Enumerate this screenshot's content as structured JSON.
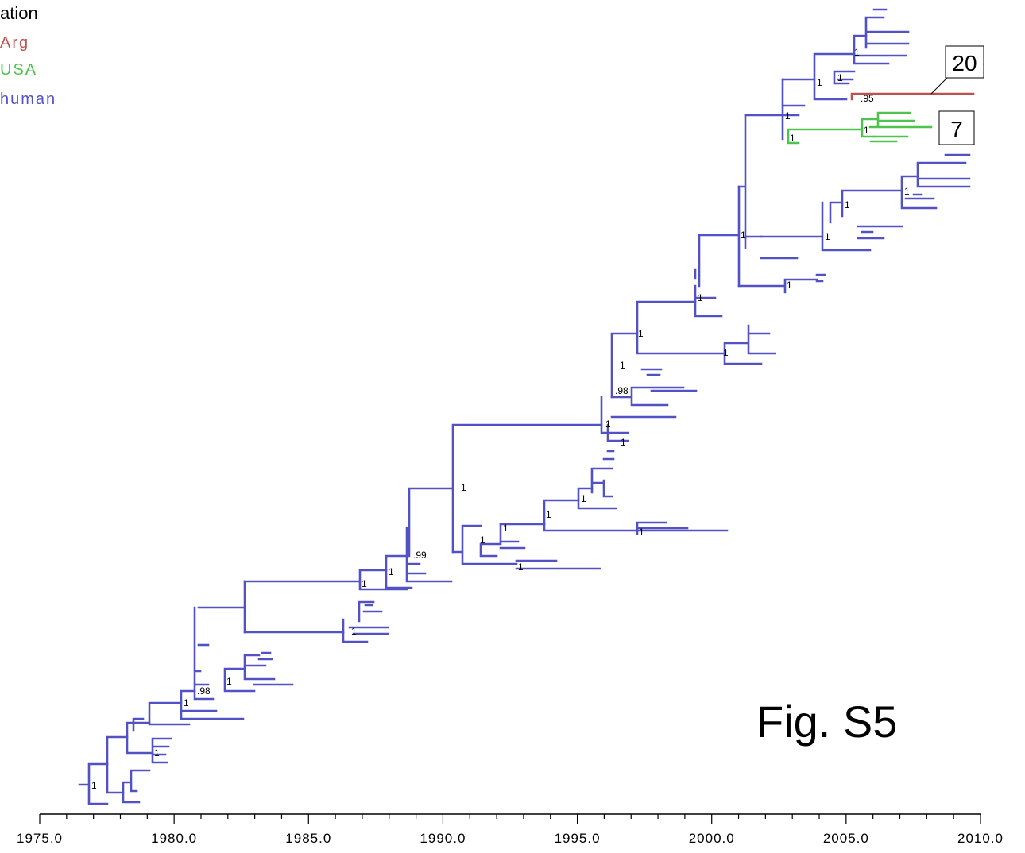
{
  "legend": {
    "title": "ation",
    "entries": [
      {
        "label": "Arg",
        "color": "#c0504d"
      },
      {
        "label": "USA",
        "color": "#4ec44e"
      },
      {
        "label": "human",
        "color": "#5252c4"
      }
    ]
  },
  "branch_colors": {
    "human": "#5252c4",
    "arg": "#c0504d",
    "usa": "#4ec44e"
  },
  "axis": {
    "min": 1975,
    "max": 2010,
    "ticks": [
      "1975.0",
      "1980.0",
      "1985.0",
      "1990.0",
      "1995.0",
      "2000.0",
      "2005.0",
      "2010.0"
    ]
  },
  "support_values": [
    "1",
    "1",
    "1",
    "1",
    ".95",
    "1",
    "1",
    "1",
    "1",
    "1",
    "1",
    "1",
    "1",
    "1",
    "1",
    ".98",
    "1",
    "1",
    "1",
    "1",
    "1",
    "1",
    "1",
    ".99",
    "1",
    "1",
    "1",
    "1",
    "1",
    ".98",
    "1",
    "1",
    "1"
  ],
  "callouts": [
    {
      "label": "20",
      "color": "#c0504d"
    },
    {
      "label": "7",
      "color": "#4ec44e"
    }
  ],
  "figure_label": "Fig. S5"
}
